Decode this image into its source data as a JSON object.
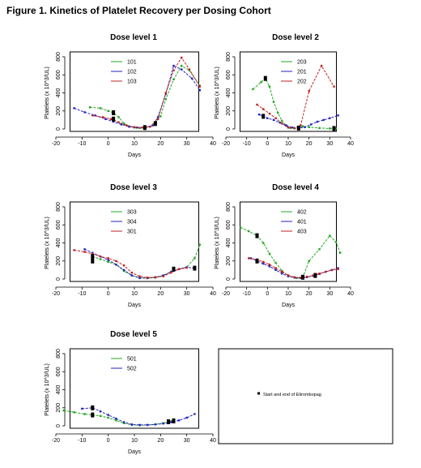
{
  "figure_title": "Figure 1. Kinetics of Platelet Recovery per Dosing Cohort",
  "key_text": "Start and end of Eltrombopag",
  "colors": {
    "green": "#22a822",
    "blue": "#2222c0",
    "red": "#c02020",
    "marker": "#000000"
  },
  "chart_data": [
    {
      "type": "line",
      "title": "Dose level 1",
      "xlabel": "Days",
      "ylabel": "Platelets (x 10^3/UL)",
      "xlim": [
        -20,
        40
      ],
      "ylim": [
        0,
        800
      ],
      "xticks": [
        -20,
        -10,
        0,
        10,
        20,
        30,
        40
      ],
      "yticks": [
        0,
        200,
        400,
        600,
        800
      ],
      "legend": "top-left",
      "series": [
        {
          "name": "101",
          "color": "green",
          "x": [
            -7,
            -3,
            0,
            2,
            4,
            6,
            8,
            10,
            12,
            14,
            16,
            18,
            20,
            22,
            25,
            28,
            31,
            35
          ],
          "y": [
            240,
            230,
            200,
            180,
            130,
            60,
            30,
            15,
            10,
            15,
            25,
            60,
            140,
            330,
            550,
            700,
            650,
            480
          ]
        },
        {
          "name": "102",
          "color": "blue",
          "x": [
            -13,
            -9,
            -5,
            -1,
            2,
            5,
            8,
            11,
            14,
            17,
            19,
            22,
            25,
            28,
            32,
            35
          ],
          "y": [
            230,
            185,
            150,
            110,
            80,
            50,
            25,
            15,
            15,
            40,
            130,
            390,
            700,
            660,
            560,
            430
          ]
        },
        {
          "name": "103",
          "color": "red",
          "x": [
            -6,
            -2,
            1,
            4,
            7,
            10,
            13,
            16,
            19,
            22,
            25,
            28,
            31,
            35
          ],
          "y": [
            150,
            130,
            110,
            75,
            40,
            20,
            15,
            25,
            110,
            400,
            650,
            790,
            660,
            470
          ]
        }
      ],
      "markers": [
        {
          "x": 2,
          "y": 180
        },
        {
          "x": 2,
          "y": 110
        },
        {
          "x": 14,
          "y": 15
        },
        {
          "x": 18,
          "y": 60
        }
      ]
    },
    {
      "type": "line",
      "title": "Dose level 2",
      "xlabel": "Days",
      "ylabel": "Platelets (x 10^3/UL)",
      "xlim": [
        -20,
        40
      ],
      "ylim": [
        0,
        800
      ],
      "xticks": [
        -20,
        -10,
        0,
        10,
        20,
        30,
        40
      ],
      "yticks": [
        0,
        200,
        400,
        600,
        800
      ],
      "legend": "top-left",
      "series": [
        {
          "name": "203",
          "color": "green",
          "x": [
            -7,
            -3,
            -1,
            1,
            3,
            5,
            7,
            9,
            11,
            13,
            15,
            17,
            20,
            25,
            30,
            33
          ],
          "y": [
            440,
            520,
            560,
            470,
            300,
            180,
            90,
            40,
            10,
            5,
            10,
            30,
            20,
            10,
            5,
            5
          ]
        },
        {
          "name": "201",
          "color": "blue",
          "x": [
            -4,
            -2,
            0,
            3,
            6,
            9,
            12,
            15,
            18,
            21,
            24,
            27,
            30,
            34
          ],
          "y": [
            160,
            140,
            120,
            100,
            70,
            40,
            15,
            10,
            20,
            50,
            80,
            100,
            120,
            150
          ]
        },
        {
          "name": "202",
          "color": "red",
          "x": [
            -5,
            -2,
            1,
            4,
            7,
            10,
            13,
            16,
            20,
            26,
            32
          ],
          "y": [
            270,
            220,
            170,
            120,
            60,
            15,
            10,
            40,
            420,
            700,
            470
          ]
        }
      ],
      "markers": [
        {
          "x": -1,
          "y": 560
        },
        {
          "x": -2,
          "y": 140
        },
        {
          "x": 15,
          "y": 10
        },
        {
          "x": 32,
          "y": 5
        }
      ]
    },
    {
      "type": "line",
      "title": "Dose level 3",
      "xlabel": "Days",
      "ylabel": "Platelets (x 10^3/UL)",
      "xlim": [
        -20,
        40
      ],
      "ylim": [
        0,
        800
      ],
      "xticks": [
        -20,
        -10,
        0,
        10,
        20,
        30,
        40
      ],
      "yticks": [
        0,
        200,
        400,
        600,
        800
      ],
      "legend": "top-left",
      "series": [
        {
          "name": "303",
          "color": "green",
          "x": [
            -6,
            -3,
            0,
            3,
            6,
            9,
            12,
            15,
            18,
            21,
            24,
            27,
            30,
            33,
            35
          ],
          "y": [
            250,
            220,
            190,
            160,
            90,
            40,
            15,
            10,
            15,
            40,
            80,
            110,
            130,
            230,
            380
          ]
        },
        {
          "name": "304",
          "color": "blue",
          "x": [
            -9,
            -6,
            -3,
            0,
            3,
            6,
            9,
            12,
            15,
            18,
            21,
            24,
            27,
            30,
            33
          ],
          "y": [
            330,
            290,
            250,
            210,
            160,
            100,
            40,
            10,
            10,
            20,
            40,
            80,
            110,
            130,
            120
          ]
        },
        {
          "name": "301",
          "color": "red",
          "x": [
            -13,
            -9,
            -6,
            -3,
            0,
            3,
            6,
            9,
            12,
            15,
            18,
            21,
            24,
            27,
            30
          ],
          "y": [
            320,
            300,
            280,
            250,
            230,
            200,
            150,
            70,
            30,
            15,
            20,
            30,
            70,
            110,
            125
          ]
        }
      ],
      "markers": [
        {
          "x": -6,
          "y": 250
        },
        {
          "x": -6,
          "y": 200
        },
        {
          "x": 25,
          "y": 110
        },
        {
          "x": 33,
          "y": 120
        }
      ]
    },
    {
      "type": "line",
      "title": "Dose level 4",
      "xlabel": "Days",
      "ylabel": "Platelets (x 10^3/UL)",
      "xlim": [
        -20,
        40
      ],
      "ylim": [
        0,
        800
      ],
      "xticks": [
        -20,
        -10,
        0,
        10,
        20,
        30,
        40
      ],
      "yticks": [
        0,
        200,
        400,
        600,
        800
      ],
      "legend": "top-left",
      "series": [
        {
          "name": "402",
          "color": "green",
          "x": [
            -13,
            -9,
            -5,
            -2,
            1,
            4,
            7,
            10,
            14,
            17,
            20,
            25,
            30,
            33,
            35
          ],
          "y": [
            570,
            530,
            480,
            400,
            280,
            180,
            90,
            40,
            10,
            20,
            200,
            330,
            480,
            410,
            290
          ]
        },
        {
          "name": "401",
          "color": "blue",
          "x": [
            -8,
            -5,
            -2,
            1,
            4,
            7,
            10,
            13,
            16,
            19,
            22,
            25,
            28,
            31,
            34
          ],
          "y": [
            230,
            200,
            170,
            140,
            100,
            60,
            30,
            15,
            10,
            20,
            35,
            55,
            80,
            100,
            120
          ]
        },
        {
          "name": "403",
          "color": "red",
          "x": [
            -9,
            -5,
            -2,
            1,
            4,
            7,
            10,
            13,
            16,
            19,
            22,
            25,
            28,
            31,
            34
          ],
          "y": [
            230,
            215,
            190,
            160,
            120,
            80,
            40,
            20,
            15,
            25,
            40,
            60,
            80,
            100,
            110
          ]
        }
      ],
      "markers": [
        {
          "x": -5,
          "y": 480
        },
        {
          "x": -5,
          "y": 200
        },
        {
          "x": 17,
          "y": 20
        },
        {
          "x": 23,
          "y": 40
        }
      ]
    },
    {
      "type": "line",
      "title": "Dose level 5",
      "xlabel": "Days",
      "ylabel": "Platelets (x 10^3/UL)",
      "xlim": [
        -20,
        40
      ],
      "ylim": [
        0,
        800
      ],
      "xticks": [
        -20,
        -10,
        0,
        10,
        20,
        30,
        40
      ],
      "yticks": [
        0,
        200,
        400,
        600,
        800
      ],
      "legend": "top-left",
      "series": [
        {
          "name": "501",
          "color": "green",
          "x": [
            -17,
            -13,
            -9,
            -6,
            -3,
            0,
            3,
            6,
            9,
            12,
            15,
            18,
            21,
            24
          ],
          "y": [
            170,
            150,
            130,
            120,
            110,
            90,
            60,
            30,
            10,
            5,
            10,
            15,
            30,
            50
          ]
        },
        {
          "name": "502",
          "color": "blue",
          "x": [
            -10,
            -6,
            -3,
            0,
            3,
            6,
            9,
            12,
            15,
            18,
            21,
            24,
            27,
            30,
            33
          ],
          "y": [
            190,
            200,
            160,
            120,
            80,
            40,
            15,
            10,
            10,
            15,
            25,
            40,
            60,
            90,
            130
          ]
        }
      ],
      "markers": [
        {
          "x": -6,
          "y": 200
        },
        {
          "x": -6,
          "y": 120
        },
        {
          "x": 23,
          "y": 45
        },
        {
          "x": 25,
          "y": 55
        }
      ]
    }
  ]
}
